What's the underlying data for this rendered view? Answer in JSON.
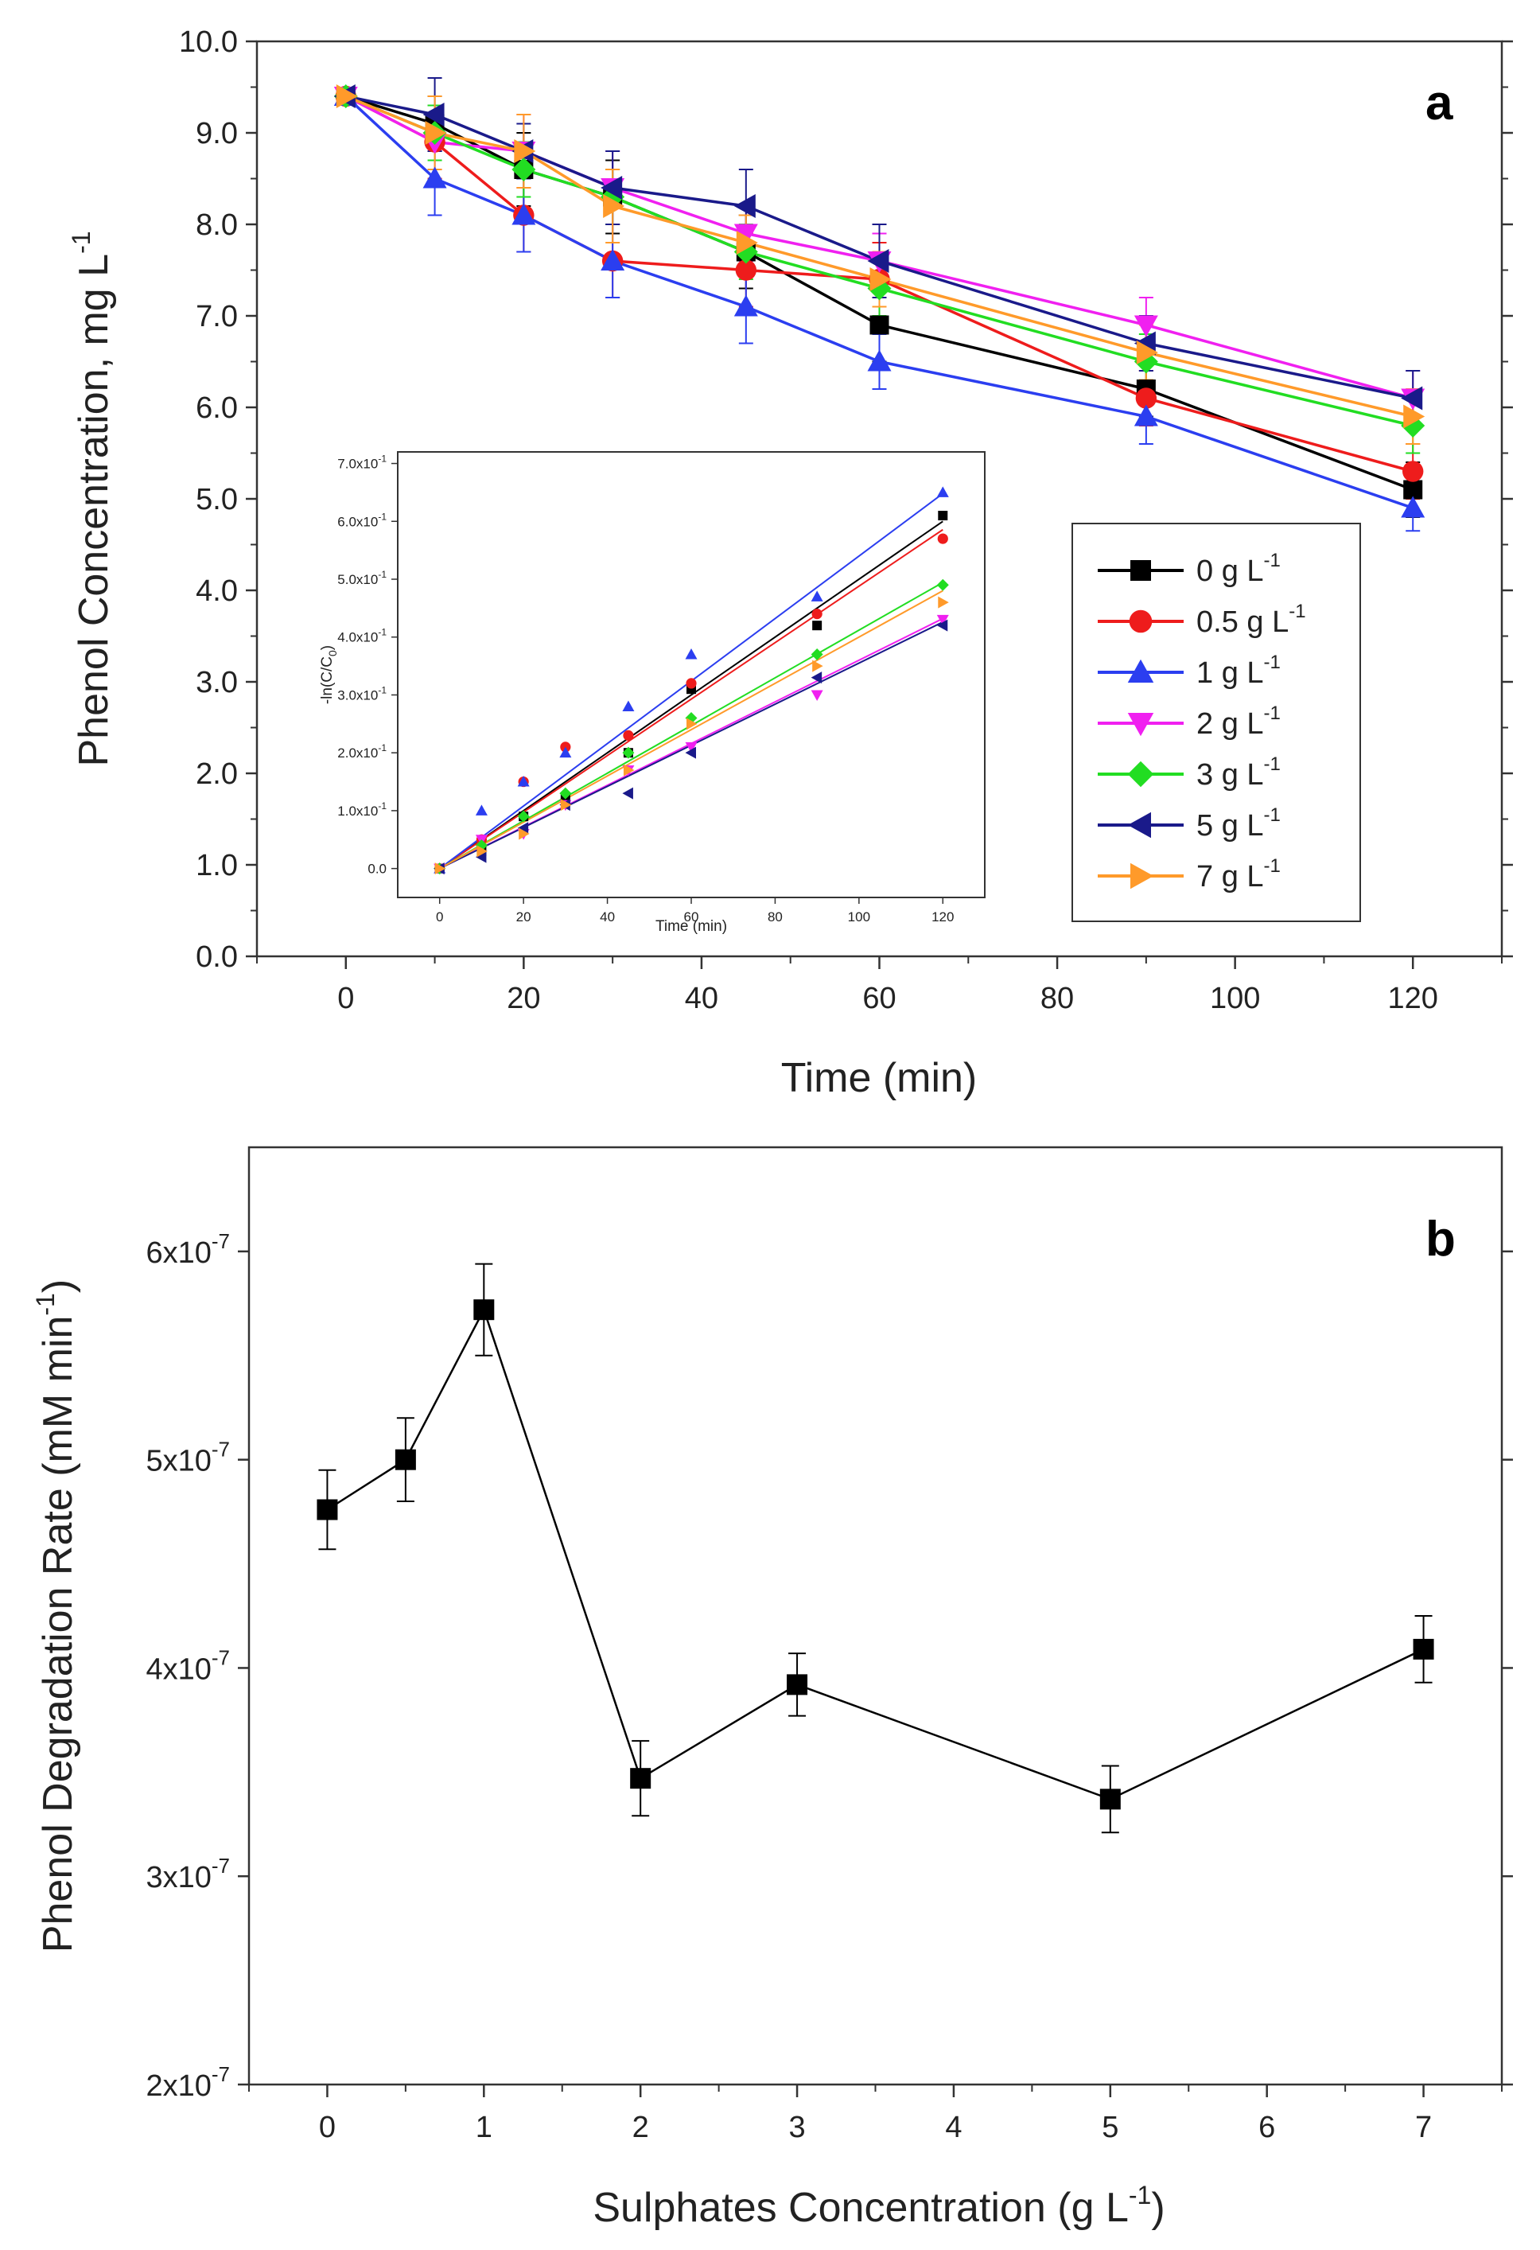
{
  "chart_data": [
    {
      "type": "line",
      "panel": "a",
      "xlabel": "Time (min)",
      "ylabel": "Phenol Concentration, mg L",
      "ylabel_sup": "-1",
      "xlim": [
        -10,
        130
      ],
      "ylim": [
        0,
        10
      ],
      "x_ticks": [
        0,
        20,
        40,
        60,
        80,
        100,
        120
      ],
      "x_tick_labels": [
        "0",
        "20",
        "40",
        "60",
        "80",
        "100",
        "120"
      ],
      "y_ticks": [
        0,
        1,
        2,
        3,
        4,
        5,
        6,
        7,
        8,
        9,
        10
      ],
      "y_tick_labels": [
        "0.0",
        "1.0",
        "2.0",
        "3.0",
        "4.0",
        "5.0",
        "6.0",
        "7.0",
        "8.0",
        "9.0",
        "10.0"
      ],
      "x": [
        0,
        10,
        20,
        30,
        45,
        60,
        90,
        120
      ],
      "series": [
        {
          "name": "0 g L",
          "sup": "-1",
          "color": "#000000",
          "marker": "square",
          "values": [
            9.4,
            9.1,
            8.6,
            8.3,
            7.7,
            6.9,
            6.2,
            5.1
          ],
          "err": [
            0.05,
            0.3,
            0.4,
            0.4,
            0.4,
            0.4,
            0.3,
            0.3
          ]
        },
        {
          "name": "0.5 g L",
          "sup": "-1",
          "color": "#ee1c1c",
          "marker": "circle",
          "values": [
            9.4,
            8.9,
            8.1,
            7.6,
            7.5,
            7.4,
            6.1,
            5.3
          ],
          "err": [
            0.05,
            0.4,
            0.4,
            0.4,
            0.4,
            0.4,
            0.3,
            0.3
          ]
        },
        {
          "name": "1 g L",
          "sup": "-1",
          "color": "#2b3ef0",
          "marker": "triangle-up",
          "values": [
            9.4,
            8.5,
            8.1,
            7.6,
            7.1,
            6.5,
            5.9,
            4.9
          ],
          "err": [
            0.05,
            0.4,
            0.4,
            0.4,
            0.4,
            0.3,
            0.3,
            0.25
          ]
        },
        {
          "name": "2 g L",
          "sup": "-1",
          "color": "#f020f0",
          "marker": "triangle-down",
          "values": [
            9.4,
            8.9,
            8.8,
            8.4,
            7.9,
            7.6,
            6.9,
            6.1
          ],
          "err": [
            0.05,
            0.3,
            0.4,
            0.4,
            0.3,
            0.3,
            0.3,
            0.3
          ]
        },
        {
          "name": "3 g L",
          "sup": "-1",
          "color": "#22dd22",
          "marker": "diamond",
          "values": [
            9.4,
            9.0,
            8.6,
            8.3,
            7.7,
            7.3,
            6.5,
            5.8
          ],
          "err": [
            0.05,
            0.3,
            0.3,
            0.3,
            0.3,
            0.3,
            0.3,
            0.3
          ]
        },
        {
          "name": "5 g L",
          "sup": "-1",
          "color": "#1a1a8a",
          "marker": "triangle-left",
          "values": [
            9.4,
            9.2,
            8.8,
            8.4,
            8.2,
            7.6,
            6.7,
            6.1
          ],
          "err": [
            0.05,
            0.4,
            0.3,
            0.4,
            0.4,
            0.4,
            0.3,
            0.3
          ]
        },
        {
          "name": "7 g L",
          "sup": "-1",
          "color": "#ff9a2a",
          "marker": "triangle-right",
          "values": [
            9.4,
            9.0,
            8.8,
            8.2,
            7.8,
            7.4,
            6.6,
            5.9
          ],
          "err": [
            0.05,
            0.4,
            0.4,
            0.4,
            0.3,
            0.3,
            0.3,
            0.3
          ]
        }
      ],
      "legend_position": "lower-right",
      "inset": {
        "type": "scatter",
        "xlabel": "Time (min)",
        "ylabel": "-ln(C/C",
        "ylabel_sub": "0",
        "ylabel_end": ")",
        "xlim": [
          -10,
          130
        ],
        "ylim": [
          -0.05,
          0.72
        ],
        "x_ticks": [
          0,
          20,
          40,
          60,
          80,
          100,
          120
        ],
        "x_tick_labels": [
          "0",
          "20",
          "40",
          "60",
          "80",
          "100",
          "120"
        ],
        "y_ticks": [
          0,
          0.1,
          0.2,
          0.3,
          0.4,
          0.5,
          0.6,
          0.7
        ],
        "y_tick_labels": [
          "0.0",
          "1.0x10",
          "2.0x10",
          "3.0x10",
          "4.0x10",
          "5.0x10",
          "6.0x10",
          "7.0x10"
        ],
        "y_tick_sup": "-1",
        "x": [
          0,
          10,
          20,
          30,
          45,
          60,
          90,
          120
        ],
        "series": [
          {
            "name": "0 g L",
            "color": "#000000",
            "marker": "square",
            "values": [
              0,
              0.03,
              0.09,
              0.12,
              0.2,
              0.31,
              0.42,
              0.61
            ],
            "slope": 0.005
          },
          {
            "name": "0.5 g L",
            "color": "#ee1c1c",
            "marker": "circle",
            "values": [
              0,
              0.05,
              0.15,
              0.21,
              0.23,
              0.32,
              0.44,
              0.57
            ],
            "slope": 0.00488
          },
          {
            "name": "1 g L",
            "color": "#2b3ef0",
            "marker": "triangle-up",
            "values": [
              0,
              0.1,
              0.15,
              0.2,
              0.28,
              0.37,
              0.47,
              0.65
            ],
            "slope": 0.0054
          },
          {
            "name": "2 g L",
            "color": "#f020f0",
            "marker": "triangle-down",
            "values": [
              0,
              0.05,
              0.06,
              0.11,
              0.17,
              0.21,
              0.3,
              0.43
            ],
            "slope": 0.0036
          },
          {
            "name": "3 g L",
            "color": "#22dd22",
            "marker": "diamond",
            "values": [
              0,
              0.04,
              0.09,
              0.13,
              0.2,
              0.26,
              0.37,
              0.49
            ],
            "slope": 0.00412
          },
          {
            "name": "5 g L",
            "color": "#1a1a8a",
            "marker": "triangle-left",
            "values": [
              0,
              0.02,
              0.07,
              0.11,
              0.13,
              0.2,
              0.33,
              0.42
            ],
            "slope": 0.00355
          },
          {
            "name": "7 g L",
            "color": "#ff9a2a",
            "marker": "triangle-right",
            "values": [
              0,
              0.03,
              0.06,
              0.11,
              0.17,
              0.25,
              0.35,
              0.46
            ],
            "slope": 0.004
          }
        ]
      }
    },
    {
      "type": "line",
      "panel": "b",
      "xlabel": "Sulphates Concentration (g L",
      "xlabel_sup": "-1",
      "xlabel_end": ")",
      "ylabel": "Phenol Degradation Rate (mM min",
      "ylabel_sup": "-1",
      "ylabel_end": ")",
      "xlim": [
        -0.5,
        7.5
      ],
      "ylim": [
        2e-07,
        6.5e-07
      ],
      "x_ticks": [
        0,
        1,
        2,
        3,
        4,
        5,
        6,
        7
      ],
      "x_tick_labels": [
        "0",
        "1",
        "2",
        "3",
        "4",
        "5",
        "6",
        "7"
      ],
      "y_ticks": [
        2e-07,
        3e-07,
        4e-07,
        5e-07,
        6e-07
      ],
      "y_tick_labels": [
        "2x10",
        "3x10",
        "4x10",
        "5x10",
        "6x10"
      ],
      "y_tick_sup": "-7",
      "x": [
        0,
        0.5,
        1,
        2,
        3,
        5,
        7
      ],
      "values": [
        4.76e-07,
        5e-07,
        5.72e-07,
        3.47e-07,
        3.92e-07,
        3.37e-07,
        4.09e-07
      ],
      "err": [
        1.9e-08,
        2e-08,
        2.2e-08,
        1.8e-08,
        1.5e-08,
        1.6e-08,
        1.6e-08
      ],
      "color": "#000000",
      "marker": "square"
    }
  ]
}
